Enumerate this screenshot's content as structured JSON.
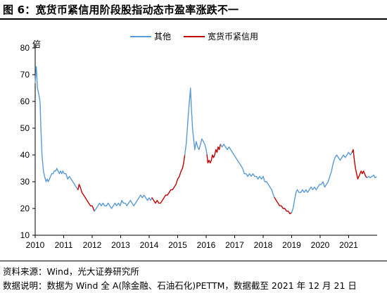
{
  "header": {
    "title": "图 6：宽货币紧信用阶段股指动态市盈率涨跌不一"
  },
  "footer": {
    "source": "资料来源：Wind，光大证券研究所",
    "note": "数据说明：数据为 Wind 全 A(除金融、石油石化)PETTM，数据截至 2021 年 12 月 21 日"
  },
  "chart_data": {
    "type": "line",
    "title": "",
    "xlabel": "",
    "ylabel": "倍",
    "ylim": [
      10,
      80
    ],
    "xlim": [
      2010.0,
      2022.0
    ],
    "yticks": [
      10,
      20,
      30,
      40,
      50,
      60,
      70,
      80
    ],
    "xticks": [
      "2010",
      "2011",
      "2012",
      "2013",
      "2014",
      "2015",
      "2016",
      "2017",
      "2018",
      "2019",
      "2020",
      "2021"
    ],
    "legend": {
      "placement": "top-center",
      "entries": [
        "其他",
        "宽货币紧信用"
      ]
    },
    "colors": {
      "其他": "#5B9BD5",
      "宽货币紧信用": "#C00000"
    },
    "grid": false,
    "series": [
      {
        "name": "其他",
        "points": [
          [
            2010.0,
            67
          ],
          [
            2010.04,
            73
          ],
          [
            2010.08,
            65
          ],
          [
            2010.12,
            63
          ],
          [
            2010.17,
            60
          ],
          [
            2010.2,
            50
          ],
          [
            2010.24,
            40
          ],
          [
            2010.29,
            34
          ],
          [
            2010.33,
            32
          ],
          [
            2010.38,
            30
          ],
          [
            2010.42,
            31
          ],
          [
            2010.46,
            30
          ],
          [
            2010.5,
            31
          ],
          [
            2010.54,
            32
          ],
          [
            2010.58,
            33
          ],
          [
            2010.63,
            33
          ],
          [
            2010.67,
            34
          ],
          [
            2010.72,
            34
          ],
          [
            2010.76,
            35
          ],
          [
            2010.8,
            34
          ],
          [
            2010.85,
            33
          ],
          [
            2010.89,
            34
          ],
          [
            2010.93,
            33
          ],
          [
            2010.97,
            34
          ],
          [
            2011.02,
            33
          ],
          [
            2011.08,
            33
          ],
          [
            2011.14,
            31
          ],
          [
            2011.2,
            32
          ],
          [
            2011.26,
            31
          ],
          [
            2011.32,
            30
          ],
          [
            2011.38,
            29
          ],
          [
            2011.44,
            28
          ],
          [
            2011.5,
            27
          ]
        ]
      },
      {
        "name": "宽货币紧信用",
        "points": [
          [
            2011.5,
            27
          ],
          [
            2011.54,
            29
          ],
          [
            2011.58,
            28
          ],
          [
            2011.64,
            26
          ],
          [
            2011.7,
            25
          ],
          [
            2011.76,
            24
          ],
          [
            2011.82,
            23
          ],
          [
            2011.88,
            22
          ],
          [
            2011.94,
            21
          ],
          [
            2012.0,
            21
          ],
          [
            2012.04,
            20
          ],
          [
            2012.08,
            19
          ]
        ]
      },
      {
        "name": "其他",
        "points": [
          [
            2012.08,
            19
          ],
          [
            2012.14,
            20
          ],
          [
            2012.2,
            21
          ],
          [
            2012.26,
            22
          ],
          [
            2012.32,
            21
          ],
          [
            2012.38,
            22
          ],
          [
            2012.44,
            21
          ],
          [
            2012.5,
            21
          ],
          [
            2012.56,
            22
          ],
          [
            2012.62,
            21
          ],
          [
            2012.68,
            20
          ],
          [
            2012.74,
            21
          ],
          [
            2012.8,
            22
          ],
          [
            2012.86,
            21
          ],
          [
            2012.92,
            22
          ],
          [
            2012.98,
            21
          ],
          [
            2013.04,
            23
          ],
          [
            2013.1,
            22
          ],
          [
            2013.16,
            22
          ],
          [
            2013.22,
            21
          ],
          [
            2013.28,
            22
          ],
          [
            2013.34,
            23
          ],
          [
            2013.4,
            22
          ],
          [
            2013.46,
            21
          ],
          [
            2013.52,
            22
          ],
          [
            2013.58,
            23
          ],
          [
            2013.64,
            24
          ],
          [
            2013.7,
            25
          ],
          [
            2013.76,
            24
          ],
          [
            2013.82,
            25
          ],
          [
            2013.88,
            24
          ],
          [
            2013.94,
            23
          ],
          [
            2014.0,
            24
          ],
          [
            2014.05,
            23
          ],
          [
            2014.1,
            24
          ]
        ]
      },
      {
        "name": "宽货币紧信用",
        "points": [
          [
            2014.1,
            24
          ],
          [
            2014.16,
            23
          ],
          [
            2014.22,
            22
          ],
          [
            2014.28,
            23
          ],
          [
            2014.34,
            22
          ],
          [
            2014.4,
            22
          ],
          [
            2014.46,
            23
          ],
          [
            2014.52,
            24
          ],
          [
            2014.58,
            25
          ],
          [
            2014.64,
            25
          ],
          [
            2014.7,
            26
          ],
          [
            2014.76,
            27
          ],
          [
            2014.82,
            27
          ],
          [
            2014.88,
            28
          ],
          [
            2014.94,
            29
          ],
          [
            2015.0,
            31
          ],
          [
            2015.06,
            32
          ],
          [
            2015.12,
            34
          ],
          [
            2015.17,
            35
          ],
          [
            2015.21,
            37
          ],
          [
            2015.25,
            40
          ]
        ]
      },
      {
        "name": "其他",
        "points": [
          [
            2015.25,
            40
          ],
          [
            2015.3,
            44
          ],
          [
            2015.34,
            50
          ],
          [
            2015.38,
            56
          ],
          [
            2015.42,
            61
          ],
          [
            2015.45,
            65
          ],
          [
            2015.48,
            58
          ],
          [
            2015.52,
            50
          ],
          [
            2015.56,
            46
          ],
          [
            2015.6,
            42
          ],
          [
            2015.65,
            45
          ],
          [
            2015.7,
            43
          ],
          [
            2015.75,
            42
          ],
          [
            2015.8,
            44
          ],
          [
            2015.85,
            46
          ],
          [
            2015.9,
            45
          ],
          [
            2015.95,
            44
          ],
          [
            2016.0,
            42
          ],
          [
            2016.03,
            40
          ]
        ]
      },
      {
        "name": "宽货币紧信用",
        "points": [
          [
            2016.03,
            40
          ],
          [
            2016.06,
            37
          ],
          [
            2016.1,
            38
          ],
          [
            2016.14,
            37
          ],
          [
            2016.18,
            38
          ],
          [
            2016.22,
            40
          ],
          [
            2016.26,
            39
          ],
          [
            2016.3,
            40
          ],
          [
            2016.34,
            42
          ],
          [
            2016.38,
            41
          ],
          [
            2016.42,
            43
          ],
          [
            2016.46,
            42
          ],
          [
            2016.5,
            44
          ]
        ]
      },
      {
        "name": "其他",
        "points": [
          [
            2016.5,
            44
          ],
          [
            2016.56,
            43
          ],
          [
            2016.62,
            44
          ],
          [
            2016.68,
            43
          ],
          [
            2016.74,
            42
          ],
          [
            2016.8,
            43
          ],
          [
            2016.86,
            42
          ],
          [
            2016.92,
            41
          ],
          [
            2016.98,
            40
          ],
          [
            2017.04,
            39
          ],
          [
            2017.1,
            38
          ],
          [
            2017.16,
            37
          ],
          [
            2017.22,
            36
          ],
          [
            2017.28,
            35
          ],
          [
            2017.34,
            33
          ],
          [
            2017.4,
            33
          ],
          [
            2017.46,
            32
          ],
          [
            2017.52,
            33
          ],
          [
            2017.58,
            32
          ],
          [
            2017.64,
            33
          ],
          [
            2017.7,
            32
          ],
          [
            2017.76,
            32
          ],
          [
            2017.82,
            31
          ],
          [
            2017.88,
            32
          ],
          [
            2017.94,
            31
          ],
          [
            2018.0,
            32
          ],
          [
            2018.06,
            30
          ],
          [
            2018.12,
            30
          ],
          [
            2018.18,
            29
          ],
          [
            2018.24,
            28
          ],
          [
            2018.3,
            27
          ],
          [
            2018.36,
            25
          ],
          [
            2018.4,
            24
          ]
        ]
      },
      {
        "name": "宽货币紧信用",
        "points": [
          [
            2018.4,
            24
          ],
          [
            2018.46,
            23
          ],
          [
            2018.52,
            22
          ],
          [
            2018.58,
            21
          ],
          [
            2018.64,
            21
          ],
          [
            2018.7,
            20
          ],
          [
            2018.76,
            20
          ],
          [
            2018.82,
            19
          ],
          [
            2018.88,
            19
          ],
          [
            2018.94,
            18
          ],
          [
            2019.0,
            18.5
          ]
        ]
      },
      {
        "name": "其他",
        "points": [
          [
            2019.0,
            18.5
          ],
          [
            2019.05,
            20
          ],
          [
            2019.1,
            23
          ],
          [
            2019.15,
            26
          ],
          [
            2019.2,
            27
          ],
          [
            2019.26,
            26
          ],
          [
            2019.32,
            26
          ],
          [
            2019.38,
            27
          ],
          [
            2019.44,
            26
          ],
          [
            2019.5,
            27
          ],
          [
            2019.56,
            26
          ],
          [
            2019.62,
            27
          ],
          [
            2019.68,
            28
          ],
          [
            2019.74,
            27
          ],
          [
            2019.8,
            28
          ],
          [
            2019.86,
            27
          ],
          [
            2019.92,
            28
          ],
          [
            2019.98,
            29
          ],
          [
            2020.04,
            29
          ],
          [
            2020.1,
            30
          ],
          [
            2020.16,
            28
          ],
          [
            2020.22,
            29
          ],
          [
            2020.28,
            30
          ],
          [
            2020.34,
            32
          ],
          [
            2020.4,
            34
          ],
          [
            2020.46,
            37
          ],
          [
            2020.52,
            39
          ],
          [
            2020.58,
            40
          ],
          [
            2020.64,
            39
          ],
          [
            2020.7,
            38
          ],
          [
            2020.76,
            39
          ],
          [
            2020.82,
            40
          ],
          [
            2020.88,
            39
          ],
          [
            2020.94,
            40
          ],
          [
            2021.0,
            41
          ],
          [
            2021.06,
            40
          ],
          [
            2021.12,
            41
          ]
        ]
      },
      {
        "name": "宽货币紧信用",
        "points": [
          [
            2021.12,
            41
          ],
          [
            2021.16,
            42
          ],
          [
            2021.2,
            38
          ],
          [
            2021.24,
            35
          ],
          [
            2021.28,
            33
          ],
          [
            2021.32,
            31
          ],
          [
            2021.36,
            32
          ],
          [
            2021.4,
            33
          ],
          [
            2021.44,
            34
          ],
          [
            2021.48,
            33
          ],
          [
            2021.52,
            34
          ],
          [
            2021.56,
            33
          ],
          [
            2021.6,
            32
          ],
          [
            2021.64,
            31.5
          ]
        ]
      },
      {
        "name": "其他",
        "points": [
          [
            2021.64,
            31.5
          ],
          [
            2021.7,
            32
          ],
          [
            2021.76,
            31.5
          ],
          [
            2021.82,
            32
          ],
          [
            2021.88,
            32.5
          ],
          [
            2021.92,
            31.5
          ],
          [
            2021.97,
            31.8
          ]
        ]
      }
    ]
  }
}
